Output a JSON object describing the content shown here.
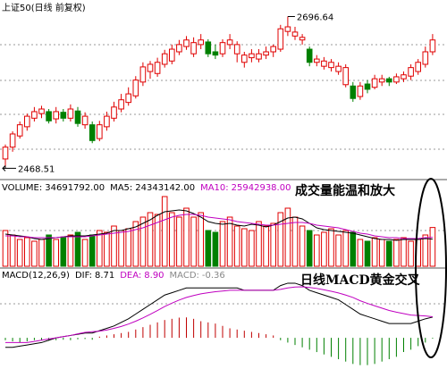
{
  "chart_data": [
    {
      "type": "candlestick",
      "title": "上证50(日线 前复权)",
      "open": [
        2480,
        2498,
        2515,
        2529,
        2542,
        2549,
        2552,
        2541,
        2551,
        2542,
        2553,
        2532,
        2532,
        2511,
        2529,
        2542,
        2556,
        2566,
        2576,
        2597,
        2613,
        2610,
        2624,
        2629,
        2643,
        2651,
        2640,
        2654,
        2658,
        2643,
        2640,
        2654,
        2640,
        2627,
        2634,
        2632,
        2638,
        2643,
        2647,
        2674,
        2667,
        2661,
        2647,
        2627,
        2621,
        2619,
        2613,
        2593,
        2591,
        2575,
        2594,
        2589,
        2597,
        2602,
        2597,
        2602,
        2606,
        2613,
        2624,
        2643
      ],
      "high": [
        2502,
        2522,
        2537,
        2549,
        2559,
        2561,
        2556,
        2559,
        2556,
        2563,
        2559,
        2551,
        2537,
        2538,
        2552,
        2567,
        2579,
        2589,
        2606,
        2627,
        2629,
        2634,
        2646,
        2654,
        2661,
        2667,
        2665,
        2670,
        2662,
        2654,
        2662,
        2670,
        2659,
        2643,
        2647,
        2647,
        2651,
        2654,
        2684,
        2696.64,
        2681,
        2670,
        2651,
        2638,
        2635,
        2632,
        2627,
        2624,
        2597,
        2597,
        2600,
        2608,
        2608,
        2605,
        2610,
        2613,
        2624,
        2632,
        2651,
        2670
      ],
      "low": [
        2468.51,
        2491,
        2511,
        2523,
        2537,
        2542,
        2534,
        2534,
        2537,
        2537,
        2529,
        2526,
        2504,
        2507,
        2523,
        2537,
        2551,
        2561,
        2572,
        2591,
        2602,
        2605,
        2619,
        2624,
        2638,
        2646,
        2635,
        2647,
        2635,
        2632,
        2635,
        2647,
        2627,
        2619,
        2627,
        2627,
        2632,
        2635,
        2643,
        2667,
        2661,
        2654,
        2621,
        2621,
        2616,
        2613,
        2608,
        2589,
        2567,
        2570,
        2580,
        2586,
        2591,
        2591,
        2594,
        2597,
        2600,
        2608,
        2619,
        2638
      ],
      "close": [
        2498,
        2518,
        2532,
        2545,
        2552,
        2556,
        2538,
        2552,
        2542,
        2556,
        2534,
        2545,
        2508,
        2532,
        2545,
        2559,
        2570,
        2579,
        2600,
        2620,
        2624,
        2627,
        2640,
        2647,
        2654,
        2661,
        2657,
        2661,
        2640,
        2638,
        2657,
        2661,
        2654,
        2638,
        2640,
        2640,
        2643,
        2651,
        2678,
        2681,
        2673,
        2665,
        2627,
        2632,
        2629,
        2627,
        2621,
        2619,
        2572,
        2591,
        2586,
        2602,
        2602,
        2597,
        2605,
        2608,
        2619,
        2627,
        2643,
        2661
      ],
      "high_label": 2696.64,
      "low_label": 2468.51,
      "ylim": [
        2450,
        2715
      ],
      "up_color": "#e00000",
      "down_color": "#008000"
    },
    {
      "type": "volume",
      "legend_label": "VOLUME:",
      "last_value_label": "34691792.00",
      "values": [
        32000000,
        28000000,
        24000000,
        25600000,
        22400000,
        24000000,
        28000000,
        24000000,
        25600000,
        28000000,
        30400000,
        24000000,
        28000000,
        32000000,
        30400000,
        36000000,
        32000000,
        33600000,
        40000000,
        44000000,
        48000000,
        46400000,
        62400000,
        48000000,
        44000000,
        52000000,
        44000000,
        48000000,
        32000000,
        30400000,
        40000000,
        44000000,
        36000000,
        33600000,
        32000000,
        40000000,
        36000000,
        38400000,
        48000000,
        52000000,
        44000000,
        36000000,
        32000000,
        28000000,
        30400000,
        33600000,
        28000000,
        32000000,
        30400000,
        24000000,
        22400000,
        25600000,
        24000000,
        22400000,
        24000000,
        25600000,
        22400000,
        24000000,
        28000000,
        34691792
      ],
      "series": [
        {
          "label": "MA5:",
          "value_label": "24343142.00",
          "color": "#000000",
          "values": [
            28800000,
            28000000,
            27200000,
            26400000,
            24800000,
            24000000,
            24800000,
            25600000,
            26400000,
            27200000,
            27200000,
            27200000,
            28000000,
            28800000,
            29600000,
            32000000,
            32000000,
            33600000,
            35200000,
            38400000,
            41600000,
            45600000,
            48800000,
            49600000,
            50400000,
            49600000,
            47200000,
            44000000,
            40000000,
            38400000,
            37600000,
            38400000,
            36800000,
            36000000,
            37600000,
            36800000,
            35200000,
            36800000,
            40000000,
            43200000,
            44000000,
            42400000,
            38400000,
            34400000,
            32800000,
            32000000,
            31200000,
            30400000,
            29600000,
            28000000,
            26400000,
            24800000,
            24000000,
            24000000,
            23200000,
            24000000,
            24000000,
            24000000,
            24800000,
            24343142
          ]
        },
        {
          "label": "MA10:",
          "value_label": "25942938.00",
          "color": "#c000c0",
          "values": [
            27200000,
            27200000,
            26400000,
            26400000,
            25600000,
            25600000,
            25600000,
            25600000,
            26400000,
            26400000,
            26400000,
            26400000,
            27200000,
            28000000,
            28800000,
            29600000,
            30400000,
            31200000,
            32800000,
            34400000,
            36800000,
            39200000,
            41600000,
            44000000,
            45600000,
            46400000,
            46400000,
            45600000,
            44000000,
            43200000,
            42400000,
            41600000,
            40000000,
            39200000,
            38400000,
            37600000,
            36800000,
            36800000,
            37600000,
            38400000,
            39200000,
            39200000,
            38400000,
            36800000,
            36000000,
            35200000,
            34400000,
            32800000,
            31200000,
            29600000,
            28800000,
            27200000,
            26400000,
            25600000,
            25600000,
            24800000,
            24800000,
            24800000,
            25600000,
            25942938
          ]
        }
      ],
      "ylim": [
        0,
        64800000
      ],
      "annotation": "成交量能温和放大"
    },
    {
      "type": "macd",
      "title": "MACD(12,26,9)",
      "series": [
        {
          "label": "DIF:",
          "color": "#000000",
          "values": [
            -4,
            -4,
            -3.5,
            -3,
            -2.5,
            -2,
            -1,
            0,
            0.5,
            1,
            1.5,
            2,
            2,
            3,
            4,
            5,
            6.5,
            8,
            10,
            12,
            14,
            16,
            18,
            19,
            20,
            21,
            21,
            21,
            21,
            21,
            21,
            21,
            21,
            20,
            20,
            20,
            20,
            20,
            22,
            23,
            23,
            22,
            20,
            19,
            18,
            17,
            16,
            14,
            12,
            10,
            9,
            8,
            7,
            6,
            6,
            6,
            6,
            7,
            8,
            8.71
          ]
        },
        {
          "label": "DEA:",
          "value_label": "8.90",
          "color": "#c000c0",
          "values": [
            -2,
            -2,
            -2,
            -2,
            -1.5,
            -1,
            -0.5,
            0,
            0.5,
            1,
            1.7,
            2.3,
            2.6,
            2.8,
            3.3,
            4,
            4.8,
            5.8,
            7,
            8.4,
            9.9,
            11.5,
            13.2,
            14.6,
            15.9,
            17,
            17.8,
            18.5,
            19,
            19.4,
            19.7,
            20,
            20,
            20,
            20,
            20,
            20,
            20,
            20.4,
            21,
            21.4,
            21.5,
            21.2,
            20.8,
            20.2,
            19.6,
            18.9,
            18,
            17,
            15.6,
            14.5,
            13.5,
            12.5,
            11.5,
            10.8,
            10.2,
            9.6,
            9.4,
            9.2,
            8.9
          ]
        }
      ],
      "histogram": {
        "label": "MACD:",
        "up_color": "#c00000",
        "down_color": "#008000",
        "values": [
          -1,
          -1.5,
          -2,
          -1.5,
          -1,
          -1,
          -1.2,
          -1,
          -0.8,
          -1,
          -0.6,
          -0.5,
          -0.8,
          0.5,
          1,
          1.5,
          2,
          2.5,
          3.5,
          4.5,
          5.5,
          6.5,
          7.5,
          8,
          8.5,
          8.6,
          8,
          7,
          6.5,
          6,
          5,
          4,
          3.5,
          3,
          2.5,
          2,
          1.5,
          1,
          -1,
          -2,
          -3,
          -4,
          -5,
          -6,
          -7,
          -8,
          -9,
          -10,
          -11,
          -11.5,
          -11.5,
          -11,
          -10,
          -9,
          -8,
          -6,
          -5,
          -3.5,
          -2,
          -0.36
        ]
      },
      "ylim": [
        -12,
        27.5
      ],
      "annotation": "日线MACD黄金交叉"
    }
  ]
}
